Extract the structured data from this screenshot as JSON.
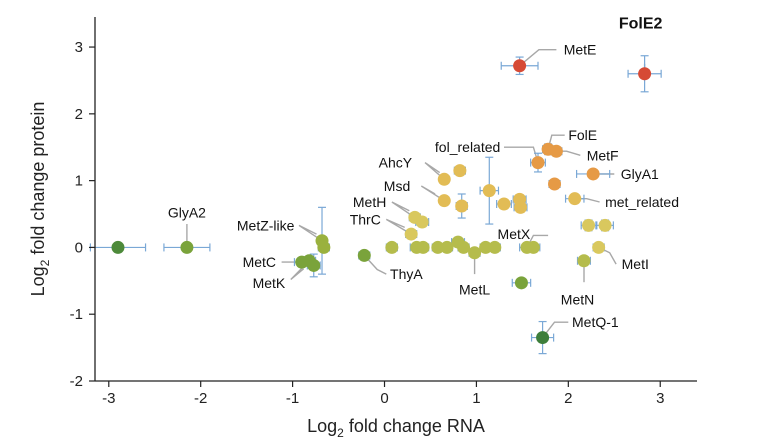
{
  "chart_data": {
    "type": "scatter",
    "title": "",
    "xlabel_main": "Log",
    "xlabel_sub": "2",
    "xlabel_rest": " fold change RNA",
    "ylabel_main": "Log",
    "ylabel_sub": "2",
    "ylabel_rest": " fold change protein",
    "xlim": [
      -3.15,
      3.4
    ],
    "ylim": [
      -2,
      3.45
    ],
    "xticks": [
      -3,
      -2,
      -1,
      0,
      1,
      2,
      3
    ],
    "yticks": [
      -2,
      -1,
      0,
      1,
      2,
      3
    ],
    "xtick_labels": [
      "-3",
      "-2",
      "-1",
      "0",
      "1",
      "2",
      "3"
    ],
    "ytick_labels": [
      "-2",
      "-1",
      "0",
      "1",
      "2",
      "3"
    ],
    "grid": false,
    "colors": {
      "error_bar": "#7aa8d6",
      "leader": "#a8a8a8",
      "red": "#d64a35",
      "orange": "#e69a45",
      "yellow": "#e2bc55",
      "lightyellow": "#d9c85e",
      "olive": "#b5bc4c",
      "lightgreen": "#9ab13e",
      "green": "#7aa33b",
      "darkgreen": "#4d8a3a",
      "deepgreen": "#3d7e3b"
    },
    "points": [
      {
        "x": 2.83,
        "y": 2.6,
        "xerr": 0.18,
        "yerr": 0.27,
        "color": "red"
      },
      {
        "x": 1.47,
        "y": 2.72,
        "xerr": 0.2,
        "yerr": 0.13,
        "color": "red"
      },
      {
        "x": 1.67,
        "y": 1.27,
        "xerr": 0.08,
        "yerr": 0.14,
        "color": "orange"
      },
      {
        "x": 1.78,
        "y": 1.47,
        "xerr": 0.06,
        "yerr": 0.08,
        "color": "orange"
      },
      {
        "x": 1.87,
        "y": 1.44,
        "xerr": 0.06,
        "yerr": 0.07,
        "color": "orange"
      },
      {
        "x": 2.27,
        "y": 1.1,
        "xerr": 0.18,
        "yerr": 0.06,
        "color": "orange"
      },
      {
        "x": 1.85,
        "y": 0.95,
        "xerr": 0.06,
        "yerr": 0.06,
        "color": "orange"
      },
      {
        "x": 2.07,
        "y": 0.73,
        "xerr": 0.1,
        "yerr": 0.06,
        "color": "yellow"
      },
      {
        "x": 0.65,
        "y": 1.02,
        "xerr": 0.05,
        "yerr": 0.05,
        "color": "yellow"
      },
      {
        "x": 0.82,
        "y": 1.15,
        "xerr": 0.06,
        "yerr": 0.06,
        "color": "yellow"
      },
      {
        "x": 0.65,
        "y": 0.7,
        "xerr": 0.05,
        "yerr": 0.05,
        "color": "yellow"
      },
      {
        "x": 0.84,
        "y": 0.62,
        "xerr": 0.06,
        "yerr": 0.18,
        "color": "yellow"
      },
      {
        "x": 1.14,
        "y": 0.85,
        "xerr": 0.1,
        "yerr": 0.5,
        "color": "yellow"
      },
      {
        "x": 1.3,
        "y": 0.65,
        "xerr": 0.08,
        "yerr": 0.06,
        "color": "yellow"
      },
      {
        "x": 1.47,
        "y": 0.72,
        "xerr": 0.07,
        "yerr": 0.07,
        "color": "yellow"
      },
      {
        "x": 1.48,
        "y": 0.6,
        "xerr": 0.07,
        "yerr": 0.07,
        "color": "yellow"
      },
      {
        "x": 0.33,
        "y": 0.45,
        "xerr": 0.06,
        "yerr": 0.06,
        "color": "lightyellow"
      },
      {
        "x": 0.41,
        "y": 0.38,
        "xerr": 0.07,
        "yerr": 0.07,
        "color": "lightyellow"
      },
      {
        "x": 0.29,
        "y": 0.2,
        "xerr": 0.06,
        "yerr": 0.06,
        "color": "lightyellow"
      },
      {
        "x": 2.22,
        "y": 0.33,
        "xerr": 0.08,
        "yerr": 0.08,
        "color": "lightyellow"
      },
      {
        "x": 2.4,
        "y": 0.33,
        "xerr": 0.09,
        "yerr": 0.08,
        "color": "lightyellow"
      },
      {
        "x": 2.33,
        "y": 0.0,
        "xerr": 0.06,
        "yerr": 0.06,
        "color": "lightyellow"
      },
      {
        "x": 2.17,
        "y": -0.2,
        "xerr": 0.07,
        "yerr": 0.07,
        "color": "olive"
      },
      {
        "x": 0.08,
        "y": 0.0,
        "xerr": 0.06,
        "yerr": 0.05,
        "color": "olive"
      },
      {
        "x": 0.35,
        "y": 0.0,
        "xerr": 0.07,
        "yerr": 0.05,
        "color": "olive"
      },
      {
        "x": 0.42,
        "y": 0.0,
        "xerr": 0.06,
        "yerr": 0.05,
        "color": "olive"
      },
      {
        "x": 0.58,
        "y": 0.0,
        "xerr": 0.06,
        "yerr": 0.05,
        "color": "olive"
      },
      {
        "x": 0.68,
        "y": 0.0,
        "xerr": 0.06,
        "yerr": 0.05,
        "color": "olive"
      },
      {
        "x": 0.8,
        "y": 0.08,
        "xerr": 0.07,
        "yerr": 0.07,
        "color": "olive"
      },
      {
        "x": 0.86,
        "y": 0.0,
        "xerr": 0.06,
        "yerr": 0.05,
        "color": "olive"
      },
      {
        "x": 0.98,
        "y": -0.08,
        "xerr": 0.06,
        "yerr": 0.06,
        "color": "olive"
      },
      {
        "x": 1.1,
        "y": 0.0,
        "xerr": 0.06,
        "yerr": 0.05,
        "color": "olive"
      },
      {
        "x": 1.2,
        "y": 0.0,
        "xerr": 0.06,
        "yerr": 0.05,
        "color": "olive"
      },
      {
        "x": 1.55,
        "y": 0.0,
        "xerr": 0.08,
        "yerr": 0.05,
        "color": "olive"
      },
      {
        "x": 1.62,
        "y": 0.0,
        "xerr": 0.07,
        "yerr": 0.05,
        "color": "olive"
      },
      {
        "x": 1.49,
        "y": -0.53,
        "xerr": 0.1,
        "yerr": 0.06,
        "color": "green"
      },
      {
        "x": 1.72,
        "y": -1.35,
        "xerr": 0.12,
        "yerr": 0.24,
        "color": "deepgreen"
      },
      {
        "x": -0.68,
        "y": 0.1,
        "xerr": 0.05,
        "yerr": 0.5,
        "color": "lightgreen"
      },
      {
        "x": -0.66,
        "y": 0.0,
        "xerr": 0.06,
        "yerr": 0.06,
        "color": "lightgreen"
      },
      {
        "x": -0.82,
        "y": -0.2,
        "xerr": 0.07,
        "yerr": 0.07,
        "color": "green"
      },
      {
        "x": -0.9,
        "y": -0.22,
        "xerr": 0.08,
        "yerr": 0.06,
        "color": "green"
      },
      {
        "x": -0.77,
        "y": -0.27,
        "xerr": 0.07,
        "yerr": 0.17,
        "color": "green"
      },
      {
        "x": -0.22,
        "y": -0.12,
        "xerr": 0.06,
        "yerr": 0.06,
        "color": "green"
      },
      {
        "x": -2.15,
        "y": 0.0,
        "xerr": 0.25,
        "yerr": 0.05,
        "color": "green"
      },
      {
        "x": -2.9,
        "y": 0.0,
        "xerr": 0.3,
        "yerr": 0.05,
        "color": "darkgreen"
      }
    ],
    "annotations": [
      {
        "text": "FolE2",
        "bold": true,
        "x": 2.83,
        "y": 2.6,
        "pts": [
          [
            2.83,
            2.75
          ]
        ],
        "tx": 2.55,
        "ty": 3.35,
        "anchor": "start"
      },
      {
        "text": "MetE",
        "x": 1.47,
        "y": 2.72,
        "pts": [
          [
            1.68,
            2.96
          ],
          [
            1.87,
            2.96
          ]
        ],
        "tx": 1.95,
        "ty": 2.96,
        "anchor": "start"
      },
      {
        "text": "FolE",
        "x": 1.78,
        "y": 1.47,
        "pts": [
          [
            1.82,
            1.68
          ],
          [
            1.96,
            1.68
          ]
        ],
        "tx": 2.0,
        "ty": 1.68,
        "anchor": "start"
      },
      {
        "text": "fol_related",
        "x": 1.67,
        "y": 1.27,
        "pts": [
          [
            1.62,
            1.5
          ],
          [
            1.3,
            1.5
          ]
        ],
        "tx": 1.26,
        "ty": 1.5,
        "anchor": "end"
      },
      {
        "text": "MetF",
        "x": 1.87,
        "y": 1.44,
        "pts": [
          [
            1.98,
            1.44
          ],
          [
            2.13,
            1.38
          ]
        ],
        "tx": 2.2,
        "ty": 1.38,
        "anchor": "start"
      },
      {
        "text": "GlyA1",
        "x": 2.27,
        "y": 1.1,
        "pts": [
          [
            2.5,
            1.1
          ]
        ],
        "tx": 2.57,
        "ty": 1.1,
        "anchor": "start"
      },
      {
        "text": "met_related",
        "x": 2.07,
        "y": 0.73,
        "pts": [
          [
            2.2,
            0.73
          ],
          [
            2.34,
            0.68
          ]
        ],
        "tx": 2.4,
        "ty": 0.68,
        "anchor": "start"
      },
      {
        "text": "AhcY",
        "x": 0.65,
        "y": 1.02,
        "pts": [
          [
            0.44,
            1.27
          ],
          [
            0.6,
            1.12
          ]
        ],
        "tx": 0.3,
        "ty": 1.27,
        "anchor": "end"
      },
      {
        "text": "Msd",
        "x": 0.65,
        "y": 0.7,
        "pts": [
          [
            0.4,
            0.92
          ],
          [
            0.55,
            0.8
          ]
        ],
        "tx": 0.28,
        "ty": 0.92,
        "anchor": "end"
      },
      {
        "text": "MetH",
        "x": 0.33,
        "y": 0.45,
        "pts": [
          [
            0.08,
            0.68
          ],
          [
            0.27,
            0.55
          ]
        ],
        "tx": 0.02,
        "ty": 0.68,
        "anchor": "end"
      },
      {
        "text": "ThrC",
        "x": 0.29,
        "y": 0.2,
        "pts": [
          [
            0.02,
            0.42
          ],
          [
            0.22,
            0.3
          ]
        ],
        "tx": -0.04,
        "ty": 0.42,
        "anchor": "end"
      },
      {
        "text": "MetZ-like",
        "x": -0.68,
        "y": 0.1,
        "pts": [
          [
            -0.93,
            0.33
          ],
          [
            -0.74,
            0.2
          ]
        ],
        "tx": -0.98,
        "ty": 0.33,
        "anchor": "end"
      },
      {
        "text": "GlyA2",
        "x": -2.15,
        "y": 0.0,
        "pts": [
          [
            -2.15,
            0.35
          ]
        ],
        "tx": -2.15,
        "ty": 0.52,
        "anchor": "middle"
      },
      {
        "text": "MetC",
        "x": -0.9,
        "y": -0.22,
        "pts": [
          [
            -1.12,
            -0.22
          ]
        ],
        "tx": -1.18,
        "ty": -0.22,
        "anchor": "end"
      },
      {
        "text": "MetK",
        "x": -0.82,
        "y": -0.2,
        "pts": [
          [
            -1.02,
            -0.48
          ],
          [
            -0.88,
            -0.32
          ]
        ],
        "tx": -1.08,
        "ty": -0.53,
        "anchor": "end"
      },
      {
        "text": "ThyA",
        "x": -0.22,
        "y": -0.12,
        "pts": [
          [
            -0.08,
            -0.33
          ],
          [
            0.02,
            -0.4
          ]
        ],
        "tx": 0.06,
        "ty": -0.4,
        "anchor": "start"
      },
      {
        "text": "MetX",
        "x": 1.55,
        "y": 0.0,
        "pts": [
          [
            1.62,
            0.18
          ],
          [
            1.78,
            0.18
          ]
        ],
        "tx": 1.23,
        "ty": 0.2,
        "anchor": "start"
      },
      {
        "text": "MetL",
        "x": 0.98,
        "y": -0.08,
        "pts": [
          [
            0.98,
            -0.4
          ]
        ],
        "tx": 0.98,
        "ty": -0.63,
        "anchor": "middle"
      },
      {
        "text": "MetI",
        "x": 2.33,
        "y": 0.0,
        "pts": [
          [
            2.45,
            -0.08
          ],
          [
            2.52,
            -0.25
          ]
        ],
        "tx": 2.58,
        "ty": -0.25,
        "anchor": "start"
      },
      {
        "text": "MetN",
        "x": 2.17,
        "y": -0.2,
        "pts": [
          [
            2.17,
            -0.52
          ]
        ],
        "tx": 2.1,
        "ty": -0.78,
        "anchor": "middle"
      },
      {
        "text": "MetQ-1",
        "x": 1.72,
        "y": -1.35,
        "pts": [
          [
            1.85,
            -1.12
          ],
          [
            2.0,
            -1.12
          ]
        ],
        "tx": 2.04,
        "ty": -1.12,
        "anchor": "start"
      }
    ]
  }
}
